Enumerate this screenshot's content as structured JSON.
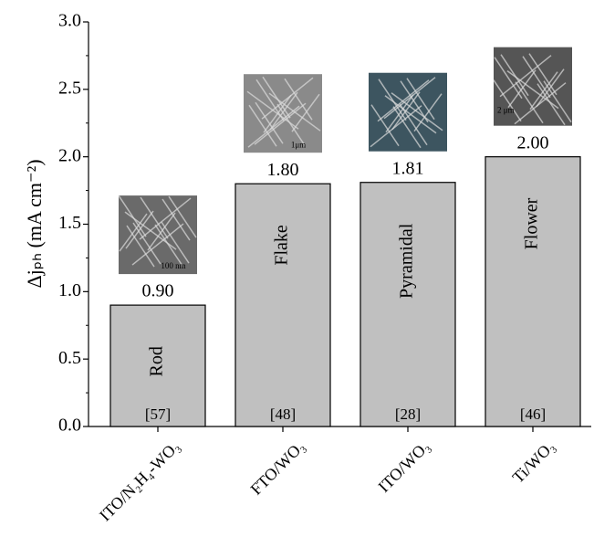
{
  "chart_data": {
    "type": "bar",
    "y_label": "Δjₚₕ (mA cm⁻²)",
    "categories": [
      "ITO/N₂H₄-WO₃",
      "FTO/WO₃",
      "ITO/WO₃",
      "Ti/WO₃"
    ],
    "values": [
      0.9,
      1.8,
      1.81,
      2.0
    ],
    "value_labels": [
      "0.90",
      "1.80",
      "1.81",
      "2.00"
    ],
    "bar_labels": [
      "Rod",
      "Flake",
      "Pyramidal",
      "Flower"
    ],
    "references": [
      "[57]",
      "[48]",
      "[28]",
      "[46]"
    ],
    "inset_scale_labels": [
      "100 nm",
      "1μm",
      null,
      "2 μm"
    ],
    "color": "#c0c0c0",
    "ylim": [
      0,
      3
    ],
    "yticks": [
      {
        "value": 0,
        "label": "0.0"
      },
      0.5,
      {
        "value": 1,
        "label": "1.0"
      },
      1.5,
      {
        "value": 2,
        "label": "2.0"
      },
      2.5,
      {
        "value": 3,
        "label": "3.0"
      }
    ],
    "grid": false
  }
}
